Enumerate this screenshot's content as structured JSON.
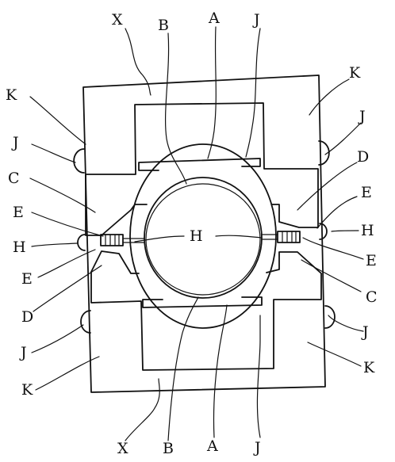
{
  "figure": {
    "labels": {
      "top": [
        "X",
        "B",
        "A",
        "J"
      ],
      "right": [
        "K",
        "J",
        "D",
        "E",
        "H",
        "E",
        "C",
        "J",
        "K"
      ],
      "left": [
        "K",
        "J",
        "C",
        "E",
        "H",
        "E",
        "D",
        "J",
        "K"
      ],
      "bottom": [
        "X",
        "B",
        "A",
        "J"
      ],
      "center": "H"
    }
  }
}
